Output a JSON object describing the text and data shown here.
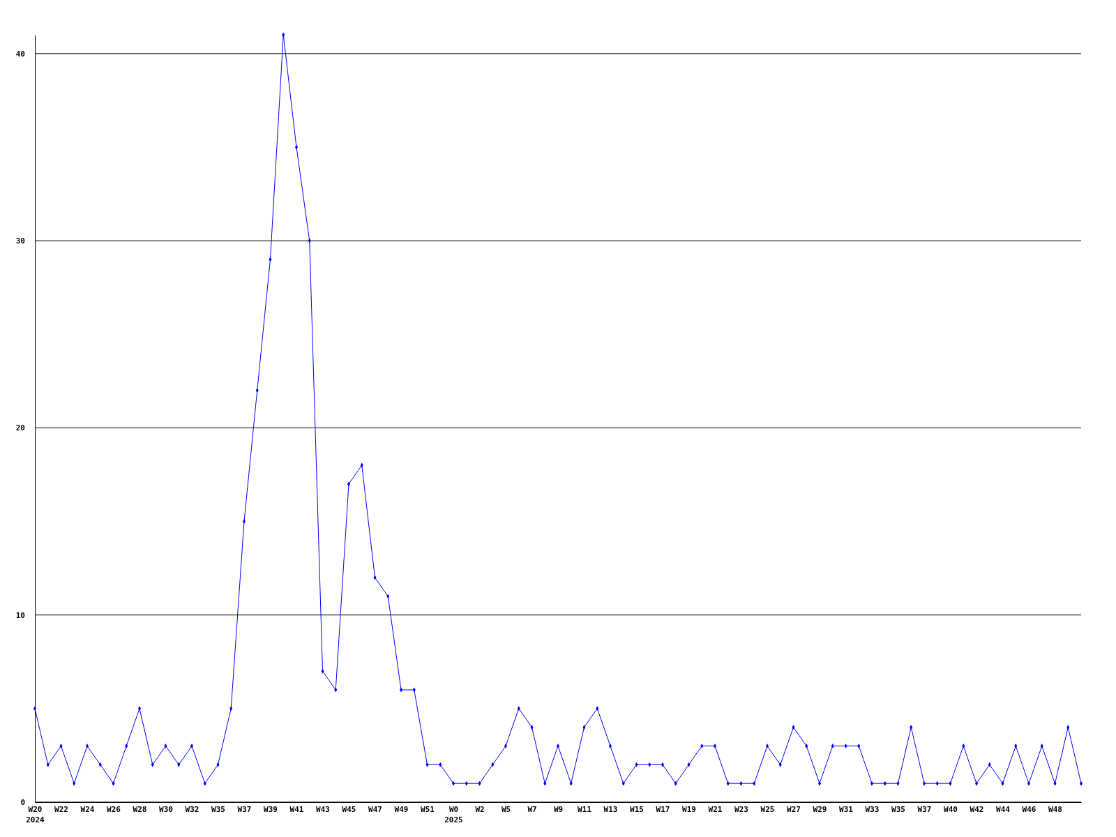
{
  "chart_data": {
    "type": "line",
    "categories": [
      "W20\n2024",
      null,
      "W22",
      null,
      "W24",
      null,
      "W26",
      null,
      "W28",
      null,
      "W30",
      null,
      "W32",
      null,
      "W35",
      null,
      "W37",
      null,
      "W39",
      null,
      "W41",
      null,
      "W43",
      null,
      "W45",
      null,
      "W47",
      null,
      "W49",
      null,
      "W51",
      null,
      "W0\n2025",
      null,
      "W2",
      null,
      "W5",
      null,
      "W7",
      null,
      "W9",
      null,
      "W11",
      null,
      "W13",
      null,
      "W15",
      null,
      "W17",
      null,
      "W19",
      null,
      "W21",
      null,
      "W23",
      null,
      "W25",
      null,
      "W27",
      null,
      "W29",
      null,
      "W31",
      null,
      "W33",
      null,
      "W35",
      null,
      "W37",
      null,
      "W40",
      null,
      "W42",
      null,
      "W44",
      null,
      "W46",
      null,
      "W48",
      null,
      null
    ],
    "series": [
      {
        "color": "#0000ff",
        "values": [
          5,
          2,
          3,
          1,
          3,
          2,
          1,
          3,
          5,
          2,
          3,
          2,
          3,
          1,
          2,
          5,
          15,
          22,
          29,
          41,
          35,
          30,
          7,
          6,
          17,
          18,
          12,
          11,
          6,
          6,
          2,
          2,
          1,
          1,
          1,
          2,
          3,
          5,
          4,
          1,
          3,
          1,
          4,
          5,
          3,
          1,
          2,
          2,
          2,
          1,
          2,
          3,
          3,
          1,
          1,
          1,
          3,
          2,
          4,
          3,
          1,
          3,
          3,
          3,
          1,
          1,
          1,
          4,
          1,
          1,
          1,
          3,
          1,
          2,
          1,
          3,
          1,
          3,
          1,
          4,
          1
        ]
      }
    ],
    "ylim": [
      0,
      41
    ],
    "yticks": [
      0,
      10,
      20,
      30,
      40
    ],
    "grid": "y",
    "marker": "diamond",
    "line_style": "solid",
    "legend": false
  }
}
